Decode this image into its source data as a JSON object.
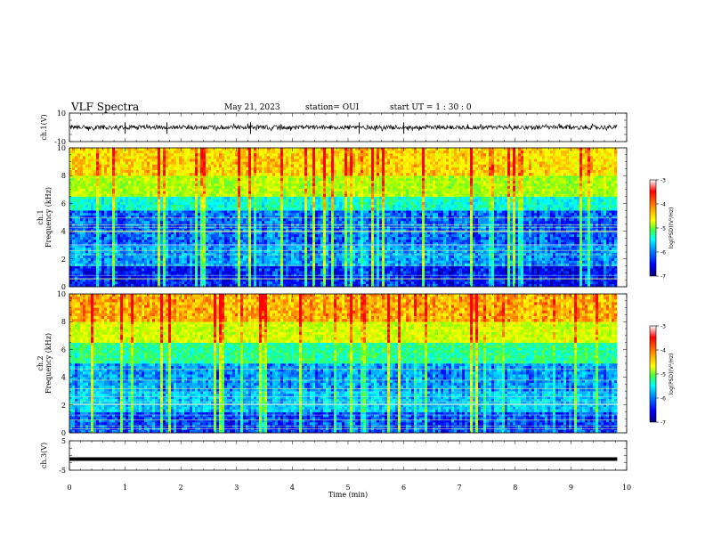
{
  "header": {
    "title": "VLF Spectra",
    "date": "May 21, 2023",
    "station": "station= OUI",
    "start": "start UT = 1 : 30 : 0"
  },
  "chart_data": [
    {
      "type": "line",
      "panel": "ch1-waveform",
      "ylabel": "ch.1(V)",
      "ylim": [
        -10,
        10
      ],
      "yticks": [
        "10",
        "-10"
      ],
      "trace_center": 0,
      "trace_amplitude_typical": 1.5,
      "spikes": [
        1.0,
        1.75,
        3.25,
        5.2,
        6.0
      ],
      "color": "#000000"
    },
    {
      "type": "heatmap",
      "panel": "ch1-spectrogram",
      "ylabel": "ch.1\nFrequency (kHz)",
      "ylim": [
        0,
        10
      ],
      "yticks": [
        "0",
        "2",
        "4",
        "6",
        "8",
        "10"
      ],
      "colorbar": {
        "label": "log(PSD)(V²/Hz)",
        "range": [
          -7,
          -3
        ],
        "ticks": [
          "-3",
          "-4",
          "-5",
          "-6",
          "-7"
        ]
      },
      "bands_log_psd": [
        {
          "freq_khz": [
            0.0,
            1.5
          ],
          "level": -6.7
        },
        {
          "freq_khz": [
            1.5,
            3.0
          ],
          "level": -6.2
        },
        {
          "freq_khz": [
            3.0,
            5.5
          ],
          "level": -6.4
        },
        {
          "freq_khz": [
            5.5,
            6.5
          ],
          "level": -5.6
        },
        {
          "freq_khz": [
            6.5,
            8.0
          ],
          "level": -4.6
        },
        {
          "freq_khz": [
            8.0,
            10.0
          ],
          "level": -4.0
        }
      ]
    },
    {
      "type": "heatmap",
      "panel": "ch2-spectrogram",
      "ylabel": "ch.2\nFrequency (kHz)",
      "ylim": [
        0,
        10
      ],
      "yticks": [
        "0",
        "2",
        "4",
        "6",
        "8",
        "10"
      ],
      "colorbar": {
        "label": "log(PSD)(V²/Hz)",
        "range": [
          -7,
          -3
        ],
        "ticks": [
          "-3",
          "-4",
          "-5",
          "-6",
          "-7"
        ]
      },
      "bands_log_psd": [
        {
          "freq_khz": [
            0.0,
            1.5
          ],
          "level": -6.5
        },
        {
          "freq_khz": [
            1.5,
            3.0
          ],
          "level": -6.0
        },
        {
          "freq_khz": [
            3.0,
            5.0
          ],
          "level": -6.2
        },
        {
          "freq_khz": [
            5.0,
            6.5
          ],
          "level": -5.3
        },
        {
          "freq_khz": [
            6.5,
            8.0
          ],
          "level": -4.4
        },
        {
          "freq_khz": [
            8.0,
            10.0
          ],
          "level": -3.8
        }
      ]
    },
    {
      "type": "line",
      "panel": "ch3-waveform",
      "ylabel": "ch.3(V)",
      "ylim": [
        -5,
        5
      ],
      "yticks": [
        "5",
        "-5"
      ],
      "trace_value": -1.2,
      "color": "#000000"
    }
  ],
  "xaxis": {
    "label": "Time (min)",
    "range": [
      0,
      10
    ],
    "data_end": 9.83,
    "ticks": [
      "0",
      "1",
      "2",
      "3",
      "4",
      "5",
      "6",
      "7",
      "8",
      "9",
      "10"
    ]
  },
  "colors": {
    "colormap": [
      "#00008b",
      "#0000ff",
      "#00a0ff",
      "#00ffff",
      "#30ff60",
      "#a0ff00",
      "#ffff00",
      "#ff9000",
      "#ff0000"
    ]
  }
}
